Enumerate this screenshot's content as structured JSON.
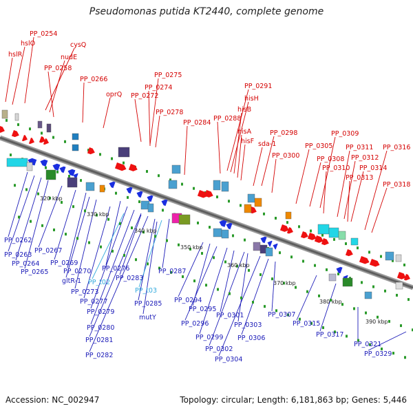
{
  "title": "Pseudomonas putida KT2440, complete genome",
  "footer": {
    "accession": "Accession: NC_002947",
    "summary": "Topology: circular; Length: 6,181,863 bp; Genes: 5,446"
  },
  "colors": {
    "forward_label": "#d40000",
    "reverse_label": "#1a1ab8",
    "rna_label": "#33aadd",
    "forward_arrow": "#ee1111",
    "reverse_arrow": "#1a2ee0",
    "backbone": "#8a8a8a",
    "tick": "#2a9a2a"
  },
  "scale_labels": [
    "320 kbp",
    "330 kbp",
    "340 kbp",
    "350 kbp",
    "360 kbp",
    "370 kbp",
    "380 kbp",
    "390 kbp"
  ],
  "forward_labels": [
    "hslR",
    "hslO",
    "PP_0254",
    "cysQ",
    "nudE",
    "PP_0258",
    "PP_0266",
    "oprQ",
    "PP_0272",
    "PP_0274",
    "PP_0275",
    "PP_0278",
    "PP_0284",
    "PP_0288",
    "PP_0291",
    "hisH",
    "hisB",
    "hisA",
    "hisF",
    "sda-1",
    "PP_0298",
    "PP_0300",
    "PP_0305",
    "PP_0308",
    "PP_0309",
    "PP_0310",
    "PP_0311",
    "PP_0312",
    "PP_0313",
    "PP_0314",
    "PP_0316",
    "PP_0318"
  ],
  "reverse_labels": [
    "PP_0262",
    "PP_0263",
    "PP_0264",
    "PP_0265",
    "PP_0267",
    "PP_0269",
    "PP_0270",
    "gltR-1",
    "PP_0273",
    "PP_0276",
    "PP_0277",
    "PP_0279",
    "PP_0280",
    "PP_0281",
    "PP_0282",
    "PP_0283",
    "PP_0285",
    "mutY",
    "PP_0287",
    "PP_0294",
    "PP_0295",
    "PP_0296",
    "PP_0299",
    "PP_0301",
    "PP_0302",
    "PP_0303",
    "PP_0304",
    "PP_0306",
    "PP_0307",
    "PP_0315",
    "PP_0317",
    "PP_0321",
    "PP_0329"
  ],
  "rna_labels": [
    "PP_t02",
    "PP_t03"
  ]
}
